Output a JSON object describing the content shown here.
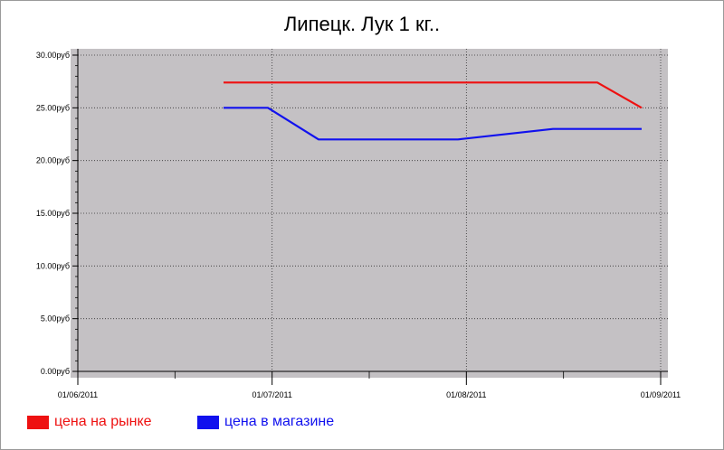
{
  "chart_data": {
    "type": "line",
    "title": "Липецк. Лук 1 кг..",
    "x_ticks": [
      "01/06/2011",
      "01/07/2011",
      "01/08/2011",
      "01/09/2011"
    ],
    "y_ticks": [
      "0.00руб",
      "5.00руб",
      "10.00руб",
      "15.00руб",
      "20.00руб",
      "25.00руб",
      "30.00руб"
    ],
    "ylim": [
      0,
      30
    ],
    "xlim": [
      "2011-06-01",
      "2011-09-01"
    ],
    "grid": true,
    "background_color": "#c4c1c4",
    "legend_position": "bottom-left",
    "series": [
      {
        "name": "цена на рынке",
        "color": "#ee1111",
        "points": [
          {
            "x": "2011-06-24",
            "y": 27.4
          },
          {
            "x": "2011-08-22",
            "y": 27.4
          },
          {
            "x": "2011-08-29",
            "y": 25.0
          }
        ]
      },
      {
        "name": "цена в магазине",
        "color": "#1111ee",
        "points": [
          {
            "x": "2011-06-24",
            "y": 25.0
          },
          {
            "x": "2011-07-01",
            "y": 25.0
          },
          {
            "x": "2011-07-09",
            "y": 22.0
          },
          {
            "x": "2011-07-31",
            "y": 22.0
          },
          {
            "x": "2011-08-15",
            "y": 23.0
          },
          {
            "x": "2011-08-29",
            "y": 23.0
          }
        ]
      }
    ]
  }
}
